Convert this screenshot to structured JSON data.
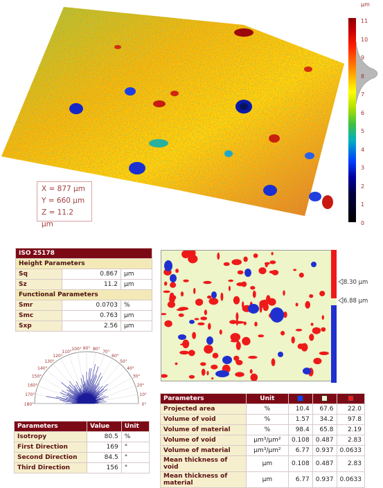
{
  "surface": {
    "unit": "µm",
    "scale_ticks": [
      "11",
      "10",
      "9",
      "8",
      "7",
      "6",
      "5",
      "4",
      "3",
      "2",
      "1",
      "0"
    ],
    "dimensions": {
      "x": "X = 877 µm",
      "y": "Y = 660 µm",
      "z": "Z = 11.2 µm"
    },
    "colors": {
      "high": "#c80000",
      "mid": "#ffff00",
      "low": "#0040ff"
    }
  },
  "iso_table": {
    "title": "ISO 25178",
    "height_section": "Height Parameters",
    "height_rows": [
      {
        "name": "Sq",
        "value": "0.867",
        "unit": "µm"
      },
      {
        "name": "Sz",
        "value": "11.2",
        "unit": "µm"
      }
    ],
    "functional_section": "Functional Parameters",
    "functional_rows": [
      {
        "name": "Smr",
        "value": "0.0703",
        "unit": "%"
      },
      {
        "name": "Smc",
        "value": "0.763",
        "unit": "µm"
      },
      {
        "name": "Sxp",
        "value": "2.56",
        "unit": "µm"
      }
    ]
  },
  "threshold": {
    "upper": "8.30 µm",
    "lower": "6.88 µm",
    "colors": {
      "peak": "#ee1a1a",
      "core": "#eef5c8",
      "void": "#2030d0"
    }
  },
  "rose": {
    "angle_labels": [
      "0°",
      "10°",
      "20°",
      "30°",
      "40°",
      "50°",
      "60°",
      "70°",
      "80°",
      "90°",
      "100°",
      "110°",
      "120°",
      "130°",
      "140°",
      "150°",
      "160°",
      "170°",
      "180°"
    ]
  },
  "isotropy_table": {
    "headers": [
      "Parameters",
      "Value",
      "Unit"
    ],
    "rows": [
      {
        "name": "Isotropy",
        "value": "80.5",
        "unit": "%"
      },
      {
        "name": "First Direction",
        "value": "169",
        "unit": "°"
      },
      {
        "name": "Second Direction",
        "value": "84.5",
        "unit": "°"
      },
      {
        "name": "Third Direction",
        "value": "156",
        "unit": "°"
      }
    ]
  },
  "void_table": {
    "headers": [
      "Parameters",
      "Unit"
    ],
    "swatch_colors": [
      "#1a3cff",
      "#f4f6d0",
      "#ee1a1a"
    ],
    "rows": [
      {
        "name": "Projected area",
        "unit": "%",
        "v1": "10.4",
        "v2": "67.6",
        "v3": "22.0"
      },
      {
        "name": "Volume of void",
        "unit": "%",
        "v1": "1.57",
        "v2": "34.2",
        "v3": "97.8"
      },
      {
        "name": "Volume of material",
        "unit": "%",
        "v1": "98.4",
        "v2": "65.8",
        "v3": "2.19"
      },
      {
        "name": "Volume of void",
        "unit": "µm³/µm²",
        "v1": "0.108",
        "v2": "0.487",
        "v3": "2.83"
      },
      {
        "name": "Volume of material",
        "unit": "µm³/µm²",
        "v1": "6.77",
        "v2": "0.937",
        "v3": "0.0633"
      },
      {
        "name": "Mean thickness of void",
        "unit": "µm",
        "v1": "0.108",
        "v2": "0.487",
        "v3": "2.83"
      },
      {
        "name": "Mean thickness of material",
        "unit": "µm",
        "v1": "6.77",
        "v2": "0.937",
        "v3": "0.0633"
      }
    ]
  }
}
